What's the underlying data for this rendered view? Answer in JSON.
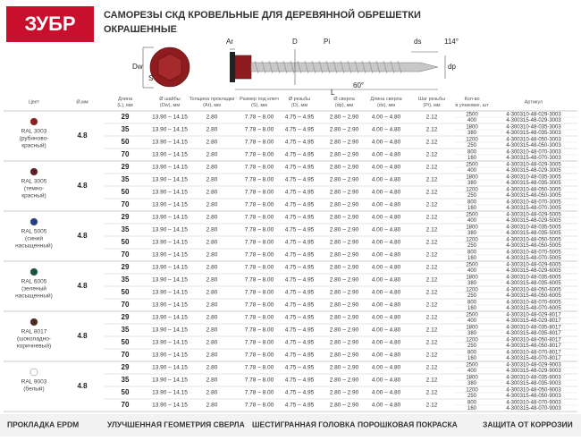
{
  "header": {
    "logo": "ЗУБР",
    "title": [
      "САМОРЕЗЫ СКД КРОВЕЛЬНЫЕ ДЛЯ ДЕРЕВЯННОЙ ОБРЕШЕТКИ",
      "ОКРАШЕННЫЕ"
    ]
  },
  "diagram": {
    "labels": {
      "dw": "Dw",
      "s": "S",
      "ar": "Ar",
      "d": "D",
      "pi": "Pi",
      "ds": "ds",
      "angle_tip": "114°",
      "dp": "dp",
      "angle_thread": "60°",
      "l": "L"
    }
  },
  "table": {
    "columns": [
      [
        "Цвет"
      ],
      [
        "Ø,мм"
      ],
      [
        "Длина",
        "(L), мм"
      ],
      [
        "Ø шайбы",
        "(Dw), мм"
      ],
      [
        "Толщина прокладки",
        "(Ar), мм"
      ],
      [
        "Размер под ключ",
        "(S), мм"
      ],
      [
        "Ø резьбы",
        "(D), мм"
      ],
      [
        "Ø сверла",
        "(dp), мм"
      ],
      [
        "Длина сверла",
        "(ds), мм"
      ],
      [
        "Шаг резьбы",
        "(Pi), мм"
      ],
      [
        "Кол-во",
        "в упаковке, шт"
      ],
      [
        "Артикул"
      ]
    ],
    "groups": [
      {
        "color": "#8e1c1f",
        "name": [
          "RAL 3003",
          "(рубиново-",
          "красный)"
        ],
        "diameter": "4.8",
        "rows": [
          {
            "cells": [
              "29",
              "13.90 – 14.15",
              "2.80",
              "7.78 – 8.00",
              "4.75 – 4.95",
              "2.80 – 2.90",
              "4.00 – 4.80",
              "2.12"
            ],
            "packs": [
              [
                "2500",
                "4-300310-48-029-3003"
              ],
              [
                "400",
                "4-300315-48-029-3003"
              ]
            ]
          },
          {
            "cells": [
              "35",
              "13.90 – 14.15",
              "2.80",
              "7.78 – 8.00",
              "4.75 – 4.95",
              "2.80 – 2.90",
              "4.00 – 4.80",
              "2.12"
            ],
            "packs": [
              [
                "1800",
                "4-300310-48-035-3003"
              ],
              [
                "380",
                "4-300315-48-035-3003"
              ]
            ]
          },
          {
            "cells": [
              "50",
              "13.90 – 14.15",
              "2.80",
              "7.78 – 8.00",
              "4.75 – 4.95",
              "2.80 – 2.90",
              "4.00 – 4.80",
              "2.12"
            ],
            "packs": [
              [
                "1200",
                "4-300310-48-050-3003"
              ],
              [
                "250",
                "4-300315-48-050-3003"
              ]
            ]
          },
          {
            "cells": [
              "70",
              "13.90 – 14.15",
              "2.80",
              "7.78 – 8.00",
              "4.75 – 4.95",
              "2.80 – 2.90",
              "4.00 – 4.80",
              "2.12"
            ],
            "packs": [
              [
                "800",
                "4-300310-48-070-3003"
              ],
              [
                "160",
                "4-300315-48-070-3003"
              ]
            ]
          }
        ]
      },
      {
        "color": "#621b22",
        "name": [
          "RAL 3005",
          "(темно-",
          "красный)"
        ],
        "diameter": "4.8",
        "rows": [
          {
            "cells": [
              "29",
              "13.90 – 14.15",
              "2.80",
              "7.78 – 8.00",
              "4.75 – 4.95",
              "2.80 – 2.90",
              "4.00 – 4.80",
              "2.12"
            ],
            "packs": [
              [
                "2500",
                "4-300310-48-029-3005"
              ],
              [
                "400",
                "4-300315-48-029-3005"
              ]
            ]
          },
          {
            "cells": [
              "35",
              "13.90 – 14.15",
              "2.80",
              "7.78 – 8.00",
              "4.75 – 4.95",
              "2.80 – 2.90",
              "4.00 – 4.80",
              "2.12"
            ],
            "packs": [
              [
                "1800",
                "4-300310-48-035-3005"
              ],
              [
                "380",
                "4-300315-48-035-3005"
              ]
            ]
          },
          {
            "cells": [
              "50",
              "13.90 – 14.15",
              "2.80",
              "7.78 – 8.00",
              "4.75 – 4.95",
              "2.80 – 2.90",
              "4.00 – 4.80",
              "2.12"
            ],
            "packs": [
              [
                "1200",
                "4-300310-48-050-3005"
              ],
              [
                "250",
                "4-300315-48-050-3005"
              ]
            ]
          },
          {
            "cells": [
              "70",
              "13.90 – 14.15",
              "2.80",
              "7.78 – 8.00",
              "4.75 – 4.95",
              "2.80 – 2.90",
              "4.00 – 4.80",
              "2.12"
            ],
            "packs": [
              [
                "800",
                "4-300310-48-070-3005"
              ],
              [
                "160",
                "4-300315-48-070-3005"
              ]
            ]
          }
        ]
      },
      {
        "color": "#1f4588",
        "name": [
          "RAL 5005",
          "(синий",
          "насыщенный)"
        ],
        "diameter": "4.8",
        "rows": [
          {
            "cells": [
              "29",
              "13.90 – 14.15",
              "2.80",
              "7.78 – 8.00",
              "4.75 – 4.95",
              "2.80 – 2.90",
              "4.00 – 4.80",
              "2.12"
            ],
            "packs": [
              [
                "2500",
                "4-300310-48-029-5005"
              ],
              [
                "400",
                "4-300315-48-029-5005"
              ]
            ]
          },
          {
            "cells": [
              "35",
              "13.90 – 14.15",
              "2.80",
              "7.78 – 8.00",
              "4.75 – 4.95",
              "2.80 – 2.90",
              "4.00 – 4.80",
              "2.12"
            ],
            "packs": [
              [
                "1800",
                "4-300310-48-035-5005"
              ],
              [
                "380",
                "4-300315-48-035-5005"
              ]
            ]
          },
          {
            "cells": [
              "50",
              "13.90 – 14.15",
              "2.80",
              "7.78 – 8.00",
              "4.75 – 4.95",
              "2.80 – 2.90",
              "4.00 – 4.80",
              "2.12"
            ],
            "packs": [
              [
                "1200",
                "4-300310-48-050-5005"
              ],
              [
                "250",
                "4-300315-48-050-5005"
              ]
            ]
          },
          {
            "cells": [
              "70",
              "13.90 – 14.15",
              "2.80",
              "7.78 – 8.00",
              "4.75 – 4.95",
              "2.80 – 2.90",
              "4.00 – 4.80",
              "2.12"
            ],
            "packs": [
              [
                "800",
                "4-300310-48-070-5005"
              ],
              [
                "160",
                "4-300315-48-070-5005"
              ]
            ]
          }
        ]
      },
      {
        "color": "#1d5440",
        "name": [
          "RAL 6005",
          "(зеленый",
          "насыщенный)"
        ],
        "diameter": "4.8",
        "rows": [
          {
            "cells": [
              "29",
              "13.90 – 14.15",
              "2.80",
              "7.78 – 8.00",
              "4.75 – 4.95",
              "2.80 – 2.90",
              "4.00 – 4.80",
              "2.12"
            ],
            "packs": [
              [
                "2500",
                "4-300310-48-029-6005"
              ],
              [
                "400",
                "4-300315-48-029-6005"
              ]
            ]
          },
          {
            "cells": [
              "35",
              "13.90 – 14.15",
              "2.80",
              "7.78 – 8.00",
              "4.75 – 4.95",
              "2.80 – 2.90",
              "4.00 – 4.80",
              "2.12"
            ],
            "packs": [
              [
                "1800",
                "4-300310-48-035-6005"
              ],
              [
                "380",
                "4-300315-48-035-6005"
              ]
            ]
          },
          {
            "cells": [
              "50",
              "13.90 – 14.15",
              "2.80",
              "7.78 – 8.00",
              "4.75 – 4.95",
              "2.80 – 2.90",
              "4.00 – 4.80",
              "2.12"
            ],
            "packs": [
              [
                "1200",
                "4-300310-48-050-6005"
              ],
              [
                "250",
                "4-300315-48-050-6005"
              ]
            ]
          },
          {
            "cells": [
              "70",
              "13.90 – 14.15",
              "2.80",
              "7.78 – 8.00",
              "4.75 – 4.95",
              "2.80 – 2.90",
              "4.00 – 4.80",
              "2.12"
            ],
            "packs": [
              [
                "800",
                "4-300310-48-070-6005"
              ],
              [
                "160",
                "4-300315-48-070-6005"
              ]
            ]
          }
        ]
      },
      {
        "color": "#4e2a22",
        "name": [
          "RAL 8017",
          "(шоколадно-",
          "коричневый)"
        ],
        "diameter": "4.8",
        "rows": [
          {
            "cells": [
              "29",
              "13.90 – 14.15",
              "2.80",
              "7.78 – 8.00",
              "4.75 – 4.95",
              "2.80 – 2.90",
              "4.00 – 4.80",
              "2.12"
            ],
            "packs": [
              [
                "2500",
                "4-300310-48-029-8017"
              ],
              [
                "400",
                "4-300315-48-029-8017"
              ]
            ]
          },
          {
            "cells": [
              "35",
              "13.90 – 14.15",
              "2.80",
              "7.78 – 8.00",
              "4.75 – 4.95",
              "2.80 – 2.90",
              "4.00 – 4.80",
              "2.12"
            ],
            "packs": [
              [
                "1800",
                "4-300310-48-035-8017"
              ],
              [
                "380",
                "4-300315-48-035-8017"
              ]
            ]
          },
          {
            "cells": [
              "50",
              "13.90 – 14.15",
              "2.80",
              "7.78 – 8.00",
              "4.75 – 4.95",
              "2.80 – 2.90",
              "4.00 – 4.80",
              "2.12"
            ],
            "packs": [
              [
                "1200",
                "4-300310-48-050-8017"
              ],
              [
                "250",
                "4-300315-48-050-8017"
              ]
            ]
          },
          {
            "cells": [
              "70",
              "13.90 – 14.15",
              "2.80",
              "7.78 – 8.00",
              "4.75 – 4.95",
              "2.80 – 2.90",
              "4.00 – 4.80",
              "2.12"
            ],
            "packs": [
              [
                "800",
                "4-300310-48-070-8017"
              ],
              [
                "160",
                "4-300315-48-070-8017"
              ]
            ]
          }
        ]
      },
      {
        "color": "#ffffff",
        "name": [
          "RAL 9003",
          "(белый)"
        ],
        "diameter": "4.8",
        "rows": [
          {
            "cells": [
              "29",
              "13.90 – 14.15",
              "2.80",
              "7.78 – 8.00",
              "4.75 – 4.95",
              "2.80 – 2.90",
              "4.00 – 4.80",
              "2.12"
            ],
            "packs": [
              [
                "2500",
                "4-300310-48-029-9003"
              ],
              [
                "400",
                "4-300315-48-029-9003"
              ]
            ]
          },
          {
            "cells": [
              "35",
              "13.90 – 14.15",
              "2.80",
              "7.78 – 8.00",
              "4.75 – 4.95",
              "2.80 – 2.90",
              "4.00 – 4.80",
              "2.12"
            ],
            "packs": [
              [
                "1800",
                "4-300310-48-035-9003"
              ],
              [
                "380",
                "4-300315-48-035-9003"
              ]
            ]
          },
          {
            "cells": [
              "50",
              "13.90 – 14.15",
              "2.80",
              "7.78 – 8.00",
              "4.75 – 4.95",
              "2.80 – 2.90",
              "4.00 – 4.80",
              "2.12"
            ],
            "packs": [
              [
                "1200",
                "4-300310-48-050-9003"
              ],
              [
                "250",
                "4-300315-48-050-9003"
              ]
            ]
          },
          {
            "cells": [
              "70",
              "13.90 – 14.15",
              "2.80",
              "7.78 – 8.00",
              "4.75 – 4.95",
              "2.80 – 2.90",
              "4.00 – 4.80",
              "2.12"
            ],
            "packs": [
              [
                "800",
                "4-300310-48-070-9003"
              ],
              [
                "160",
                "4-300315-48-070-9003"
              ]
            ]
          }
        ]
      }
    ]
  },
  "features": [
    "ПРОКЛАДКА EPDM",
    "УЛУЧШЕННАЯ ГЕОМЕТРИЯ СВЕРЛА",
    "ШЕСТИГРАННАЯ ГОЛОВКА",
    "ПОРОШКОВАЯ ПОКРАСКА",
    "ЗАЩИТА ОТ КОРРОЗИИ"
  ]
}
